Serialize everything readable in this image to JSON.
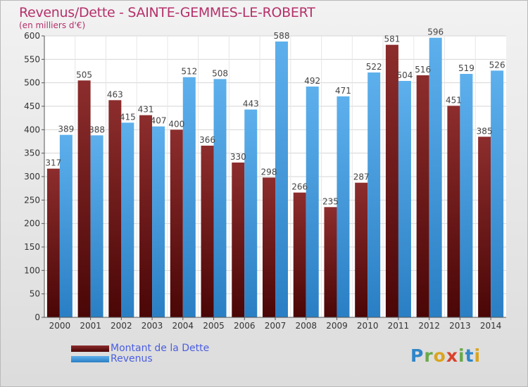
{
  "header": {
    "title": "Revenus/Dette - SAINTE-GEMMES-LE-ROBERT",
    "subtitle": "(en milliers d'€)"
  },
  "chart_data": {
    "type": "bar",
    "categories": [
      "2000",
      "2001",
      "2002",
      "2003",
      "2004",
      "2005",
      "2006",
      "2007",
      "2008",
      "2009",
      "2010",
      "2011",
      "2012",
      "2013",
      "2014"
    ],
    "series": [
      {
        "name": "Montant de la Dette",
        "color": "#7a1e1e",
        "values": [
          317,
          505,
          463,
          431,
          400,
          366,
          330,
          298,
          266,
          235,
          287,
          581,
          516,
          451,
          385
        ]
      },
      {
        "name": "Revenus",
        "color": "#3b93d6",
        "values": [
          389,
          388,
          415,
          407,
          512,
          508,
          443,
          588,
          492,
          471,
          522,
          504,
          596,
          519,
          526
        ]
      }
    ],
    "ylim": [
      0,
      600
    ],
    "yticks": [
      0,
      50,
      100,
      150,
      200,
      250,
      300,
      350,
      400,
      450,
      500,
      550,
      600
    ],
    "grid": true,
    "legend_position": "bottom-left"
  },
  "logo": {
    "letters": [
      {
        "ch": "P",
        "color": "#2f86c9"
      },
      {
        "ch": "r",
        "color": "#6aa94a"
      },
      {
        "ch": "o",
        "color": "#d9a520"
      },
      {
        "ch": "x",
        "color": "#d9412b"
      },
      {
        "ch": "i",
        "color": "#6aa94a"
      },
      {
        "ch": "t",
        "color": "#2f86c9"
      },
      {
        "ch": "i",
        "color": "#d9a520"
      }
    ]
  }
}
